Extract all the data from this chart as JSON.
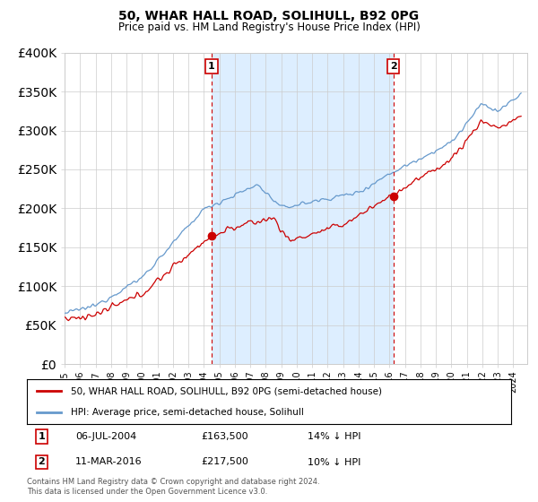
{
  "title": "50, WHAR HALL ROAD, SOLIHULL, B92 0PG",
  "subtitle": "Price paid vs. HM Land Registry's House Price Index (HPI)",
  "legend_line1": "50, WHAR HALL ROAD, SOLIHULL, B92 0PG (semi-detached house)",
  "legend_line2": "HPI: Average price, semi-detached house, Solihull",
  "annotation1_date": "06-JUL-2004",
  "annotation1_price": "£163,500",
  "annotation1_pct": "14% ↓ HPI",
  "annotation2_date": "11-MAR-2016",
  "annotation2_price": "£217,500",
  "annotation2_pct": "10% ↓ HPI",
  "footer": "Contains HM Land Registry data © Crown copyright and database right 2024.\nThis data is licensed under the Open Government Licence v3.0.",
  "red_color": "#cc0000",
  "blue_color": "#6699cc",
  "shade_color": "#ddeeff",
  "marker1_x": 2004.5,
  "marker2_x": 2016.25,
  "ylim_min": 0,
  "ylim_max": 400000,
  "xlim_min": 1995,
  "xlim_max": 2024.9,
  "background_color": "#ffffff",
  "grid_color": "#cccccc"
}
